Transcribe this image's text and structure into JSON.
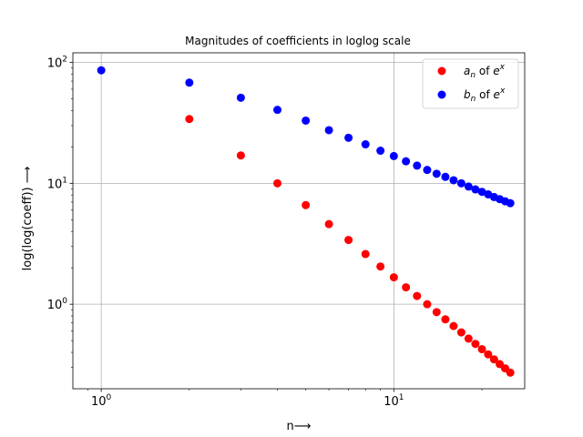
{
  "chart_data": {
    "type": "scatter",
    "title": "Magnitudes of coefficients in loglog scale",
    "xlabel": "n⟶",
    "ylabel": "log(log(coeff)) ⟶",
    "xscale": "log",
    "yscale": "log",
    "xlim": [
      0.8,
      28
    ],
    "ylim": [
      0.2,
      120
    ],
    "grid": true,
    "legend_position": "upper right",
    "x_ticks": [
      {
        "value": 1,
        "base": "10",
        "exp": "0"
      },
      {
        "value": 10,
        "base": "10",
        "exp": "1"
      }
    ],
    "y_ticks": [
      {
        "value": 1,
        "base": "10",
        "exp": "0"
      },
      {
        "value": 10,
        "base": "10",
        "exp": "1"
      },
      {
        "value": 100,
        "base": "10",
        "exp": "2"
      }
    ],
    "series": [
      {
        "name_main": "a",
        "name_sub": "n",
        "name_mid": " of ",
        "name_base": "e",
        "name_sup": "x",
        "color": "#ff0000",
        "x": [
          2,
          3,
          4,
          5,
          6,
          7,
          8,
          9,
          10,
          11,
          12,
          13,
          14,
          15,
          16,
          17,
          18,
          19,
          20,
          21,
          22,
          23,
          24,
          25
        ],
        "y": [
          34,
          17,
          10,
          6.6,
          4.6,
          3.4,
          2.6,
          2.05,
          1.67,
          1.38,
          1.17,
          1.0,
          0.86,
          0.75,
          0.66,
          0.585,
          0.52,
          0.47,
          0.425,
          0.385,
          0.35,
          0.32,
          0.295,
          0.272
        ]
      },
      {
        "name_main": "b",
        "name_sub": "n",
        "name_mid": " of ",
        "name_base": "e",
        "name_sup": "x",
        "color": "#0000ff",
        "x": [
          1,
          2,
          3,
          4,
          5,
          6,
          7,
          8,
          9,
          10,
          11,
          12,
          13,
          14,
          15,
          16,
          17,
          18,
          19,
          20,
          21,
          22,
          23,
          24,
          25
        ],
        "y": [
          86,
          68,
          51,
          40.5,
          33,
          27.5,
          23.8,
          21,
          18.6,
          16.8,
          15.2,
          14,
          12.9,
          12,
          11.3,
          10.6,
          10,
          9.4,
          8.9,
          8.5,
          8.1,
          7.7,
          7.4,
          7.1,
          6.85
        ]
      }
    ]
  }
}
